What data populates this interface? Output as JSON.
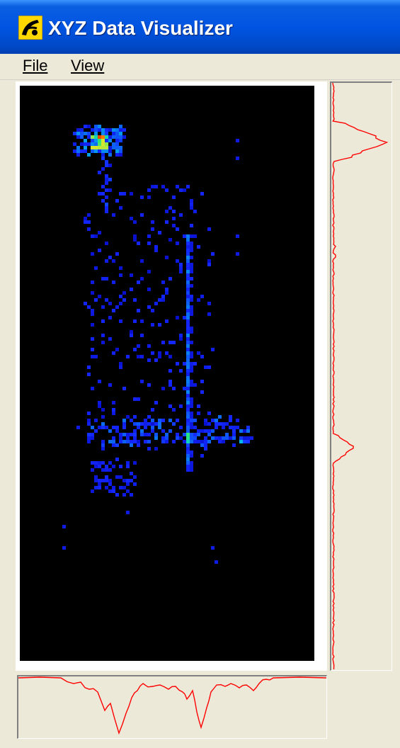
{
  "window": {
    "title": "XYZ Data Visualizer"
  },
  "menu": {
    "items": [
      {
        "label": "File"
      },
      {
        "label": "View"
      }
    ]
  },
  "colors": {
    "profile_line": "#ff0000",
    "plot_background": "#000000"
  }
}
